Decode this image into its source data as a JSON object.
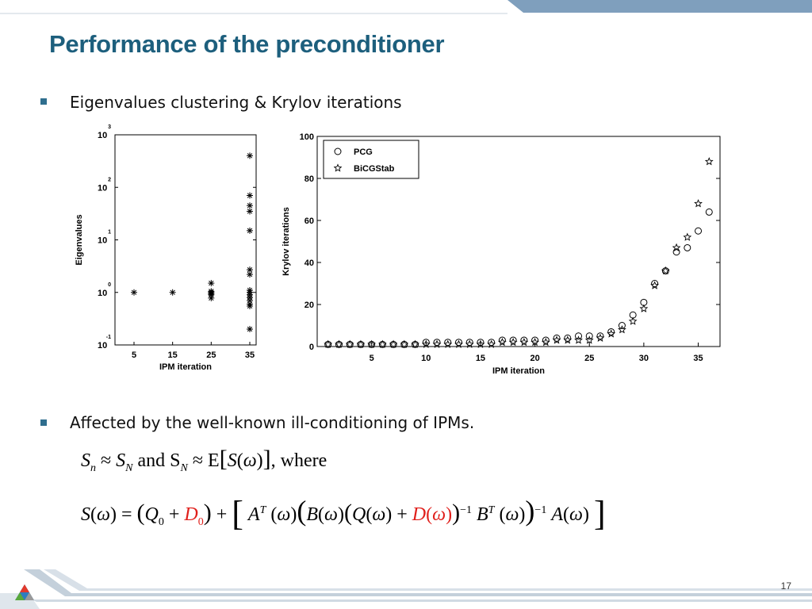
{
  "slide": {
    "title": "Performance of the preconditioner",
    "bullets": [
      "Eigenvalues clustering & Krylov iterations",
      "Affected by the well-known ill-conditioning of IPMs."
    ],
    "page_number": "17",
    "colors": {
      "title": "#1d5f7d",
      "accent": "#2f6e8e",
      "highlight": "#e0201c"
    }
  },
  "equations": {
    "eq1": {
      "word_and": "and",
      "word_where": "where"
    }
  },
  "chart_data": [
    {
      "type": "scatter",
      "title": "",
      "xlabel": "IPM iteration",
      "ylabel": "Eigenvalues",
      "yscale": "log",
      "ylim": [
        0.1,
        1000
      ],
      "xticks": [
        "5",
        "15",
        "25",
        "35"
      ],
      "yticks": [
        {
          "base": "10",
          "exp": "-1"
        },
        {
          "base": "10",
          "exp": "0"
        },
        {
          "base": "10",
          "exp": "1"
        },
        {
          "base": "10",
          "exp": "2"
        },
        {
          "base": "10",
          "exp": "3"
        }
      ],
      "grid": false,
      "series": [
        {
          "marker": "asterisk",
          "points": [
            {
              "x": "5",
              "y": 1.0
            },
            {
              "x": "15",
              "y": 1.0
            },
            {
              "x": "25",
              "y": 1.5
            },
            {
              "x": "25",
              "y": 1.05
            },
            {
              "x": "25",
              "y": 1.0
            },
            {
              "x": "25",
              "y": 0.95
            },
            {
              "x": "25",
              "y": 0.9
            },
            {
              "x": "25",
              "y": 0.78
            },
            {
              "x": "35",
              "y": 400
            },
            {
              "x": "35",
              "y": 70
            },
            {
              "x": "35",
              "y": 45
            },
            {
              "x": "35",
              "y": 35
            },
            {
              "x": "35",
              "y": 15
            },
            {
              "x": "35",
              "y": 2.7
            },
            {
              "x": "35",
              "y": 2.2
            },
            {
              "x": "35",
              "y": 1.1
            },
            {
              "x": "35",
              "y": 1.0
            },
            {
              "x": "35",
              "y": 0.9
            },
            {
              "x": "35",
              "y": 0.8
            },
            {
              "x": "35",
              "y": 0.7
            },
            {
              "x": "35",
              "y": 0.6
            },
            {
              "x": "35",
              "y": 0.55
            },
            {
              "x": "35",
              "y": 0.2
            }
          ]
        }
      ]
    },
    {
      "type": "scatter",
      "title": "",
      "xlabel": "IPM iteration",
      "ylabel": "Krylov iterations",
      "xlim": [
        0,
        37
      ],
      "ylim": [
        0,
        100
      ],
      "xticks": [
        5,
        10,
        15,
        20,
        25,
        30,
        35
      ],
      "yticks": [
        0,
        20,
        40,
        60,
        80,
        100
      ],
      "legend": "top-left",
      "grid": false,
      "series": [
        {
          "name": "PCG",
          "marker": "circle",
          "x": [
            1,
            2,
            3,
            4,
            5,
            6,
            7,
            8,
            9,
            10,
            11,
            12,
            13,
            14,
            15,
            16,
            17,
            18,
            19,
            20,
            21,
            22,
            23,
            24,
            25,
            26,
            27,
            28,
            29,
            30,
            31,
            32,
            33,
            34,
            35,
            36
          ],
          "y": [
            1,
            1,
            1,
            1,
            1,
            1,
            1,
            1,
            1,
            2,
            2,
            2,
            2,
            2,
            2,
            2,
            3,
            3,
            3,
            3,
            3,
            4,
            4,
            5,
            5,
            5,
            7,
            10,
            15,
            21,
            30,
            36,
            45,
            47,
            55,
            64
          ]
        },
        {
          "name": "BiCGStab",
          "marker": "star",
          "x": [
            1,
            2,
            3,
            4,
            5,
            6,
            7,
            8,
            9,
            10,
            11,
            12,
            13,
            14,
            15,
            16,
            17,
            18,
            19,
            20,
            21,
            22,
            23,
            24,
            25,
            26,
            27,
            28,
            29,
            30,
            31,
            32,
            33,
            34,
            35,
            36
          ],
          "y": [
            1,
            1,
            1,
            1,
            1,
            1,
            1,
            1,
            1,
            1,
            1,
            1,
            1,
            1,
            1,
            1,
            2,
            2,
            2,
            2,
            2,
            3,
            3,
            3,
            3,
            4,
            6,
            8,
            12,
            18,
            29,
            36,
            47,
            52,
            68,
            88
          ]
        }
      ]
    }
  ]
}
